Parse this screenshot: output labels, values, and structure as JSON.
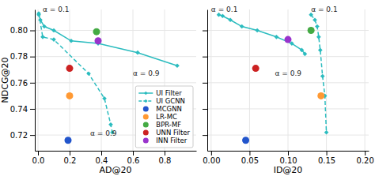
{
  "chart_data": [
    {
      "type": "line",
      "x_label": "AD@20",
      "y_label": "NDCG@20",
      "xlim": [
        -0.02,
        1.0
      ],
      "ylim": [
        0.708,
        0.816
      ],
      "xticks": [
        {
          "value": 0.0,
          "label": "0.0"
        },
        0.2,
        0.4,
        0.6,
        0.8
      ],
      "yticks": [
        0.72,
        0.74,
        0.76,
        0.78,
        {
          "value": 0.8,
          "label": "0.80"
        }
      ],
      "grid": true,
      "legend": "lower right",
      "series": [
        {
          "name": "UI Filter",
          "type": "line",
          "color": "#2bbcbf",
          "marker": "diamond",
          "line_style": "solid",
          "x": [
            0.005,
            0.015,
            0.04,
            0.1,
            0.21,
            0.38,
            0.63,
            0.88
          ],
          "values": [
            0.812,
            0.808,
            0.803,
            0.8,
            0.792,
            0.79,
            0.783,
            0.773
          ]
        },
        {
          "name": "UI GCNN",
          "type": "line",
          "color": "#2bbcbf",
          "marker": "diamond",
          "line_style": "dashed",
          "x": [
            0.005,
            0.03,
            0.1,
            0.32,
            0.42,
            0.46,
            0.47
          ],
          "values": [
            0.813,
            0.795,
            0.793,
            0.767,
            0.748,
            0.728,
            0.722
          ]
        },
        {
          "name": "MCGNN",
          "type": "scatter",
          "color": "#2255cc",
          "marker": "circle",
          "x": [
            0.19
          ],
          "values": [
            0.716
          ]
        },
        {
          "name": "LR-MC",
          "type": "scatter",
          "color": "#ff9933",
          "marker": "circle",
          "x": [
            0.2
          ],
          "values": [
            0.75
          ]
        },
        {
          "name": "BPR-MF",
          "type": "scatter",
          "color": "#44aa44",
          "marker": "circle",
          "x": [
            0.37
          ],
          "values": [
            0.799
          ]
        },
        {
          "name": "UNN Filter",
          "type": "scatter",
          "color": "#cc2222",
          "marker": "circle",
          "x": [
            0.2
          ],
          "values": [
            0.771
          ]
        },
        {
          "name": "INN Filter",
          "type": "scatter",
          "color": "#9933cc",
          "marker": "circle",
          "x": [
            0.38
          ],
          "values": [
            0.792
          ]
        }
      ],
      "annotations": [
        {
          "text": "α = 0.1",
          "x": 0.03,
          "y": 0.813
        },
        {
          "text": "α = 0.9",
          "x": 0.6,
          "y": 0.764
        },
        {
          "text": "α = 0.9",
          "x": 0.33,
          "y": 0.724
        }
      ]
    },
    {
      "type": "line",
      "x_label": "ID@20",
      "xlim": [
        -0.005,
        0.205
      ],
      "ylim": [
        0.708,
        0.816
      ],
      "xticks": [
        {
          "value": 0.0,
          "label": "0.00"
        },
        0.05,
        {
          "value": 0.1,
          "label": "0.10"
        },
        0.15,
        {
          "value": 0.2,
          "label": "0.20"
        }
      ],
      "yticks": [
        0.72,
        0.74,
        0.76,
        0.78,
        0.8
      ],
      "tick_labels": "x",
      "grid": true,
      "series": [
        {
          "type": "line",
          "color": "#2bbcbf",
          "marker": "diamond",
          "line_style": "solid",
          "x": [
            0.01,
            0.015,
            0.025,
            0.04,
            0.06,
            0.085,
            0.105,
            0.118,
            0.122
          ],
          "values": [
            0.812,
            0.811,
            0.808,
            0.803,
            0.8,
            0.795,
            0.79,
            0.785,
            0.782
          ]
        },
        {
          "type": "line",
          "color": "#2bbcbf",
          "marker": "diamond",
          "line_style": "dashed",
          "x": [
            0.13,
            0.135,
            0.138,
            0.14,
            0.142,
            0.145,
            0.148,
            0.15
          ],
          "values": [
            0.812,
            0.808,
            0.803,
            0.795,
            0.785,
            0.765,
            0.75,
            0.722
          ]
        },
        {
          "type": "scatter",
          "color": "#2255cc",
          "marker": "circle",
          "x": [
            0.045
          ],
          "values": [
            0.716
          ]
        },
        {
          "type": "scatter",
          "color": "#ff9933",
          "marker": "circle",
          "x": [
            0.143
          ],
          "values": [
            0.75
          ]
        },
        {
          "type": "scatter",
          "color": "#44aa44",
          "marker": "circle",
          "x": [
            0.13
          ],
          "values": [
            0.8
          ]
        },
        {
          "type": "scatter",
          "color": "#cc2222",
          "marker": "circle",
          "x": [
            0.058
          ],
          "values": [
            0.771
          ]
        },
        {
          "type": "scatter",
          "color": "#9933cc",
          "marker": "circle",
          "x": [
            0.1
          ],
          "values": [
            0.793
          ]
        }
      ],
      "annotations": [
        {
          "text": "α = 0.1",
          "x": 0.0,
          "y": 0.813
        },
        {
          "text": "α = 0.1",
          "x": 0.13,
          "y": 0.813
        },
        {
          "text": "α = 0.9",
          "x": 0.083,
          "y": 0.764
        }
      ]
    }
  ]
}
